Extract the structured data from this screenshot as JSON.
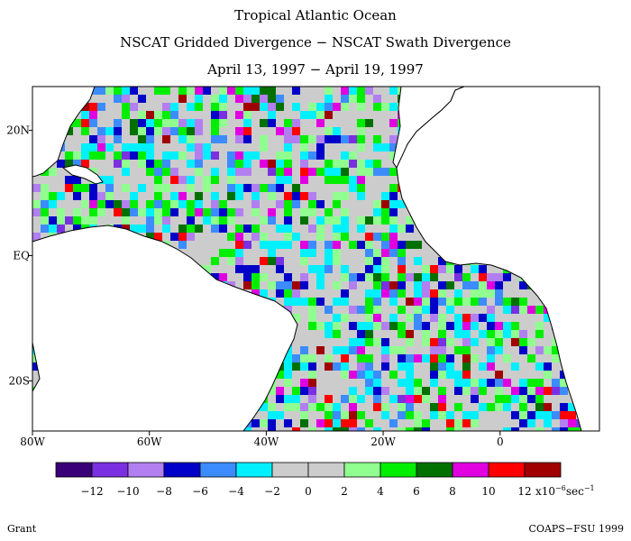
{
  "titles": {
    "line1": "Tropical Atlantic Ocean",
    "line2": "NSCAT Gridded Divergence − NSCAT Swath Divergence",
    "line3": "April 13, 1997 − April 19, 1997"
  },
  "axes": {
    "lon_ticks": [
      "80W",
      "60W",
      "40W",
      "20W",
      "0"
    ],
    "lat_ticks": [
      "20N",
      "EQ",
      "20S"
    ],
    "lon_range": [
      -80,
      17
    ],
    "lat_range": [
      -28,
      27
    ]
  },
  "colorbar": {
    "colors": [
      "#3a0078",
      "#7a30e0",
      "#b27ff0",
      "#0000c8",
      "#3c8cff",
      "#00f0ff",
      "#cccccc",
      "#cccccc",
      "#90ff90",
      "#00ee00",
      "#007000",
      "#e000e0",
      "#ff0000",
      "#a00000"
    ],
    "labels": [
      "−12",
      "−10",
      "−8",
      "−6",
      "−4",
      "−2",
      "0",
      "2",
      "4",
      "6",
      "8",
      "10",
      "12"
    ],
    "units_prefix": "x10",
    "units_exp": "−6",
    "units_suffix": "sec",
    "units_suffix_exp": "−1"
  },
  "footer": {
    "left": "Grant",
    "right": "COAPS−FSU 1999"
  }
}
